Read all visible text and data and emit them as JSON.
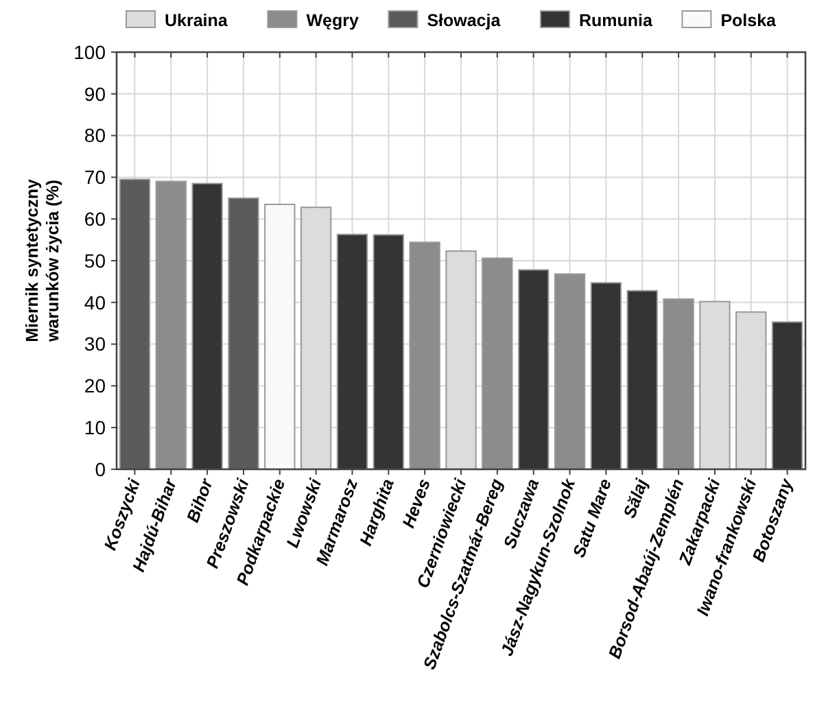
{
  "chart_data": {
    "type": "bar",
    "ylabel": "Miernik syntetyczny warunków życia (%)",
    "categories": [
      "Koszycki",
      "Hajdú-Bihar",
      "Bihor",
      "Preszowski",
      "Podkarpackie",
      "Lwowski",
      "Marmarosz",
      "Harghita",
      "Heves",
      "Czerniowiecki",
      "Szabolcs-Szatmár-Bereg",
      "Suczawa",
      "Jász-Nagykun-Szolnok",
      "Satu Mare",
      "Sălaj",
      "Borsod-Abaúj-Zemplén",
      "Zakarpacki",
      "Iwano-frankowski",
      "Botoszany"
    ],
    "stacked": true,
    "series": [
      {
        "name": "Ukraina",
        "color": "#dcdcdc",
        "values": [
          null,
          null,
          null,
          null,
          null,
          62.8,
          null,
          null,
          null,
          52.3,
          null,
          null,
          null,
          null,
          null,
          null,
          40.2,
          37.7,
          null
        ]
      },
      {
        "name": "Węgry",
        "color": "#8c8c8c",
        "values": [
          null,
          69,
          null,
          null,
          null,
          null,
          null,
          null,
          54.4,
          null,
          50.6,
          null,
          46.8,
          null,
          null,
          40.8,
          null,
          null,
          null
        ]
      },
      {
        "name": "Słowacja",
        "color": "#5a5a5a",
        "values": [
          69.5,
          null,
          null,
          65,
          null,
          null,
          null,
          null,
          null,
          null,
          null,
          null,
          null,
          null,
          null,
          null,
          null,
          null,
          null
        ]
      },
      {
        "name": "Rumunia",
        "color": "#343434",
        "values": [
          null,
          null,
          68.5,
          null,
          null,
          null,
          56.3,
          56.2,
          null,
          null,
          null,
          47.8,
          null,
          44.7,
          42.8,
          null,
          null,
          null,
          35.3
        ]
      },
      {
        "name": "Polska",
        "color": "#fafafa",
        "values": [
          null,
          null,
          null,
          null,
          63.5,
          null,
          null,
          null,
          null,
          null,
          null,
          null,
          null,
          null,
          null,
          null,
          null,
          null,
          null
        ]
      }
    ],
    "ylim": [
      0,
      100
    ],
    "yticks": [
      0,
      10,
      20,
      30,
      40,
      50,
      60,
      70,
      80,
      90,
      100
    ],
    "grid": true,
    "legend": "top"
  }
}
